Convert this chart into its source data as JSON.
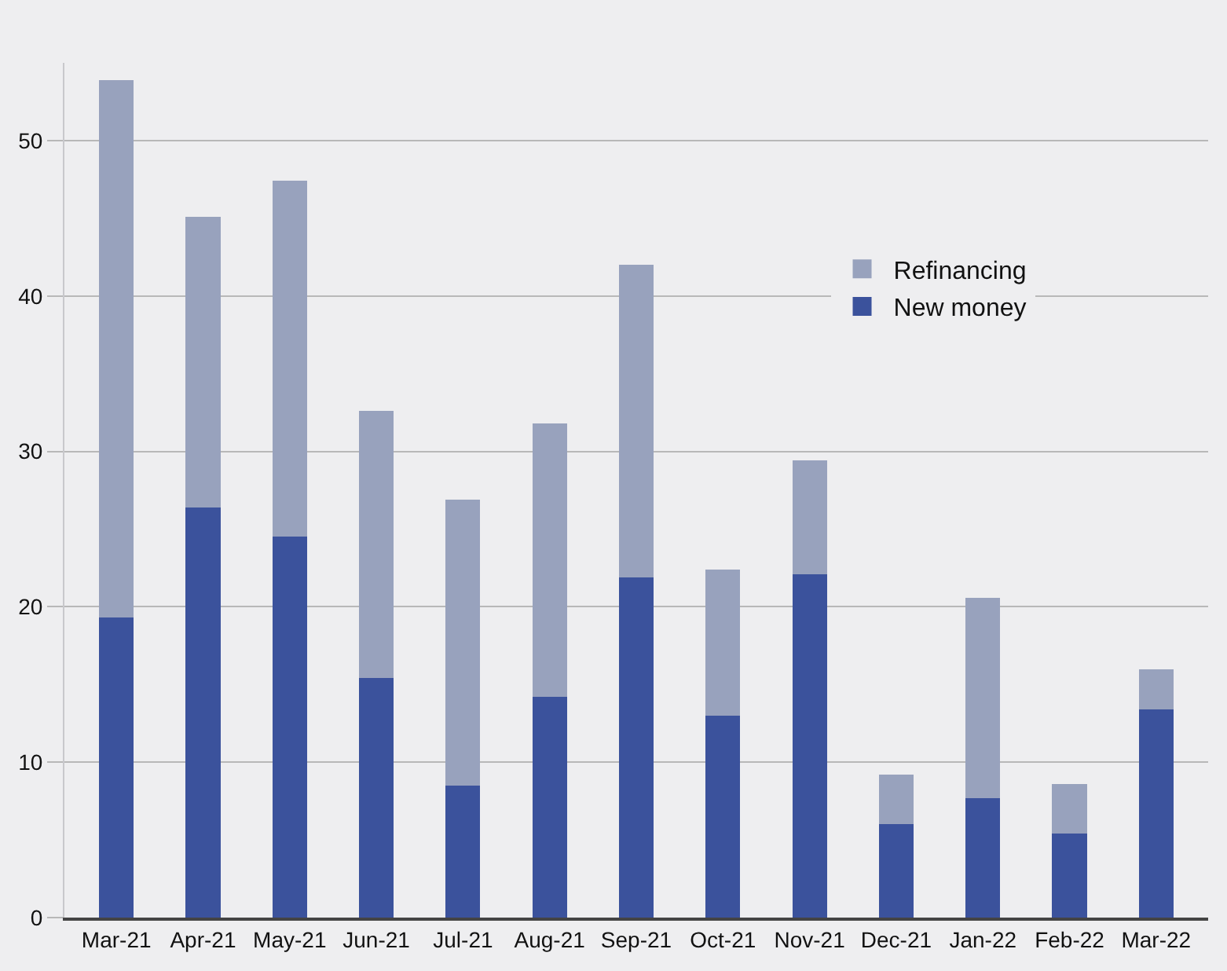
{
  "chart_data": {
    "type": "bar",
    "stacked": true,
    "categories": [
      "Mar-21",
      "Apr-21",
      "May-21",
      "Jun-21",
      "Jul-21",
      "Aug-21",
      "Sep-21",
      "Oct-21",
      "Nov-21",
      "Dec-21",
      "Jan-22",
      "Feb-22",
      "Mar-22"
    ],
    "series": [
      {
        "name": "New money",
        "color": "#3b529c",
        "values": [
          19.3,
          26.4,
          24.5,
          15.4,
          8.5,
          14.2,
          21.9,
          13.0,
          22.1,
          6.0,
          7.7,
          5.4,
          13.4
        ]
      },
      {
        "name": "Refinancing",
        "color": "#98a2bd",
        "values": [
          34.6,
          18.7,
          22.9,
          17.2,
          18.4,
          17.6,
          20.1,
          9.4,
          7.3,
          3.2,
          12.9,
          3.2,
          2.6
        ]
      }
    ],
    "ylim": [
      0,
      55
    ],
    "yticks": [
      0,
      10,
      20,
      30,
      40,
      50
    ],
    "grid": "y",
    "legend": "top right"
  }
}
